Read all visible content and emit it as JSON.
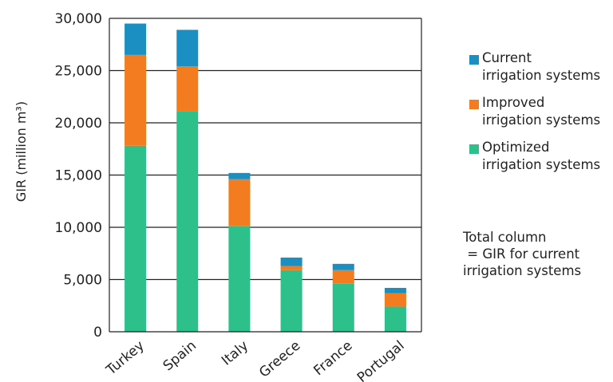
{
  "chart_data": {
    "type": "bar",
    "stacked": true,
    "ylabel": "GIR (million m³)",
    "ylim": [
      0,
      30000
    ],
    "yticks": [
      0,
      5000,
      10000,
      15000,
      20000,
      25000,
      30000
    ],
    "ytick_labels": [
      "0",
      "5,000",
      "10,000",
      "15,000",
      "20,000",
      "25,000",
      "30,000"
    ],
    "grid": "horizontal",
    "categories": [
      "Turkey",
      "Spain",
      "Italy",
      "Greece",
      "France",
      "Portugal"
    ],
    "series": [
      {
        "name": "Optimized irrigation systems",
        "color": "#2dc08a",
        "values": [
          17800,
          21100,
          10100,
          5900,
          4600,
          2400
        ]
      },
      {
        "name": "Improved irrigation systems",
        "color": "#f47c20",
        "values": [
          8700,
          4300,
          4500,
          400,
          1300,
          1300
        ]
      },
      {
        "name": "Current irrigation systems",
        "color": "#1b8fc2",
        "values": [
          3000,
          3500,
          600,
          800,
          600,
          500
        ]
      }
    ],
    "legend": {
      "position": "right",
      "items": [
        {
          "line1": "Current",
          "line2": "irrigation systems",
          "color": "#1b8fc2"
        },
        {
          "line1": "Improved",
          "line2": "irrigation systems",
          "color": "#f47c20"
        },
        {
          "line1": "Optimized",
          "line2": "irrigation systems",
          "color": "#2dc08a"
        }
      ]
    },
    "note": [
      "Total column",
      " = GIR for current",
      "irrigation systems"
    ]
  }
}
